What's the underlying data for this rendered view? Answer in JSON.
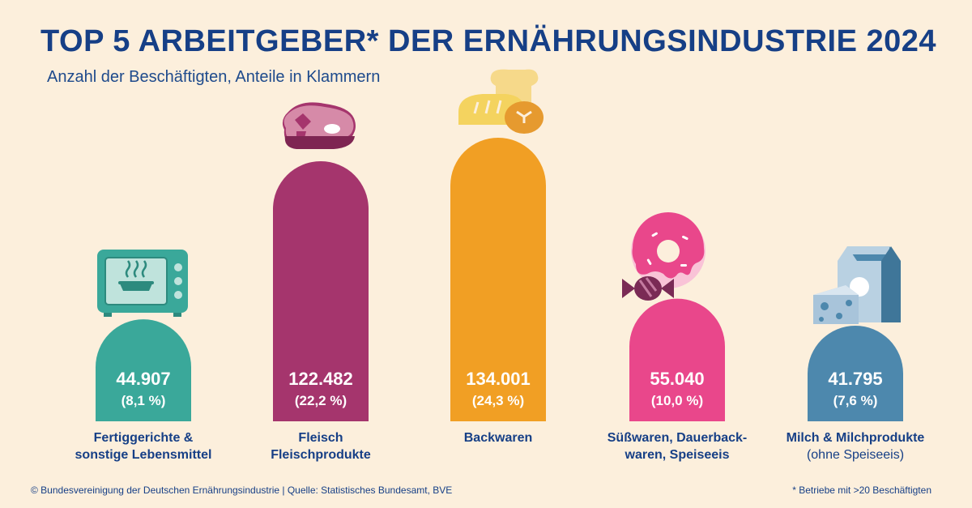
{
  "header": {
    "title": "TOP 5 ARBEITGEBER* DER ERNÄHRUNGSINDUSTRIE 2024",
    "subtitle": "Anzahl der Beschäftigten, Anteile in Klammern"
  },
  "chart_data": {
    "type": "bar",
    "title": "TOP 5 ARBEITGEBER* DER ERNÄHRUNGSINDUSTRIE 2024",
    "subtitle": "Anzahl der Beschäftigten, Anteile in Klammern",
    "categories": [
      [
        "Fertiggerichte &",
        "sonstige Lebensmittel"
      ],
      [
        "Fleisch",
        "Fleischprodukte"
      ],
      [
        "Backwaren"
      ],
      [
        "Süßwaren, Dauerback-",
        "waren, Speiseeis"
      ],
      [
        "Milch & Milchprodukte",
        "(ohne Speiseeis)"
      ]
    ],
    "values": [
      44907,
      122482,
      134001,
      55040,
      41795
    ],
    "value_labels": [
      "44.907",
      "122.482",
      "134.001",
      "55.040",
      "41.795"
    ],
    "share_labels": [
      "(8,1 %)",
      "(22,2 %)",
      "(24,3 %)",
      "(10,0 %)",
      "(7,6 %)"
    ],
    "colors": [
      "#3aa89a",
      "#a5356d",
      "#f19f24",
      "#e9478b",
      "#4d88ad"
    ],
    "icons": [
      "oven-icon",
      "steak-icon",
      "bread-icon",
      "sweets-icon",
      "dairy-icon"
    ],
    "grid": false,
    "legend": "none"
  },
  "footer": {
    "source": "© Bundesvereinigung der Deutschen Ernährungsindustrie | Quelle: Statistisches Bundesamt, BVE",
    "note": "* Betriebe mit >20 Beschäftigten"
  }
}
